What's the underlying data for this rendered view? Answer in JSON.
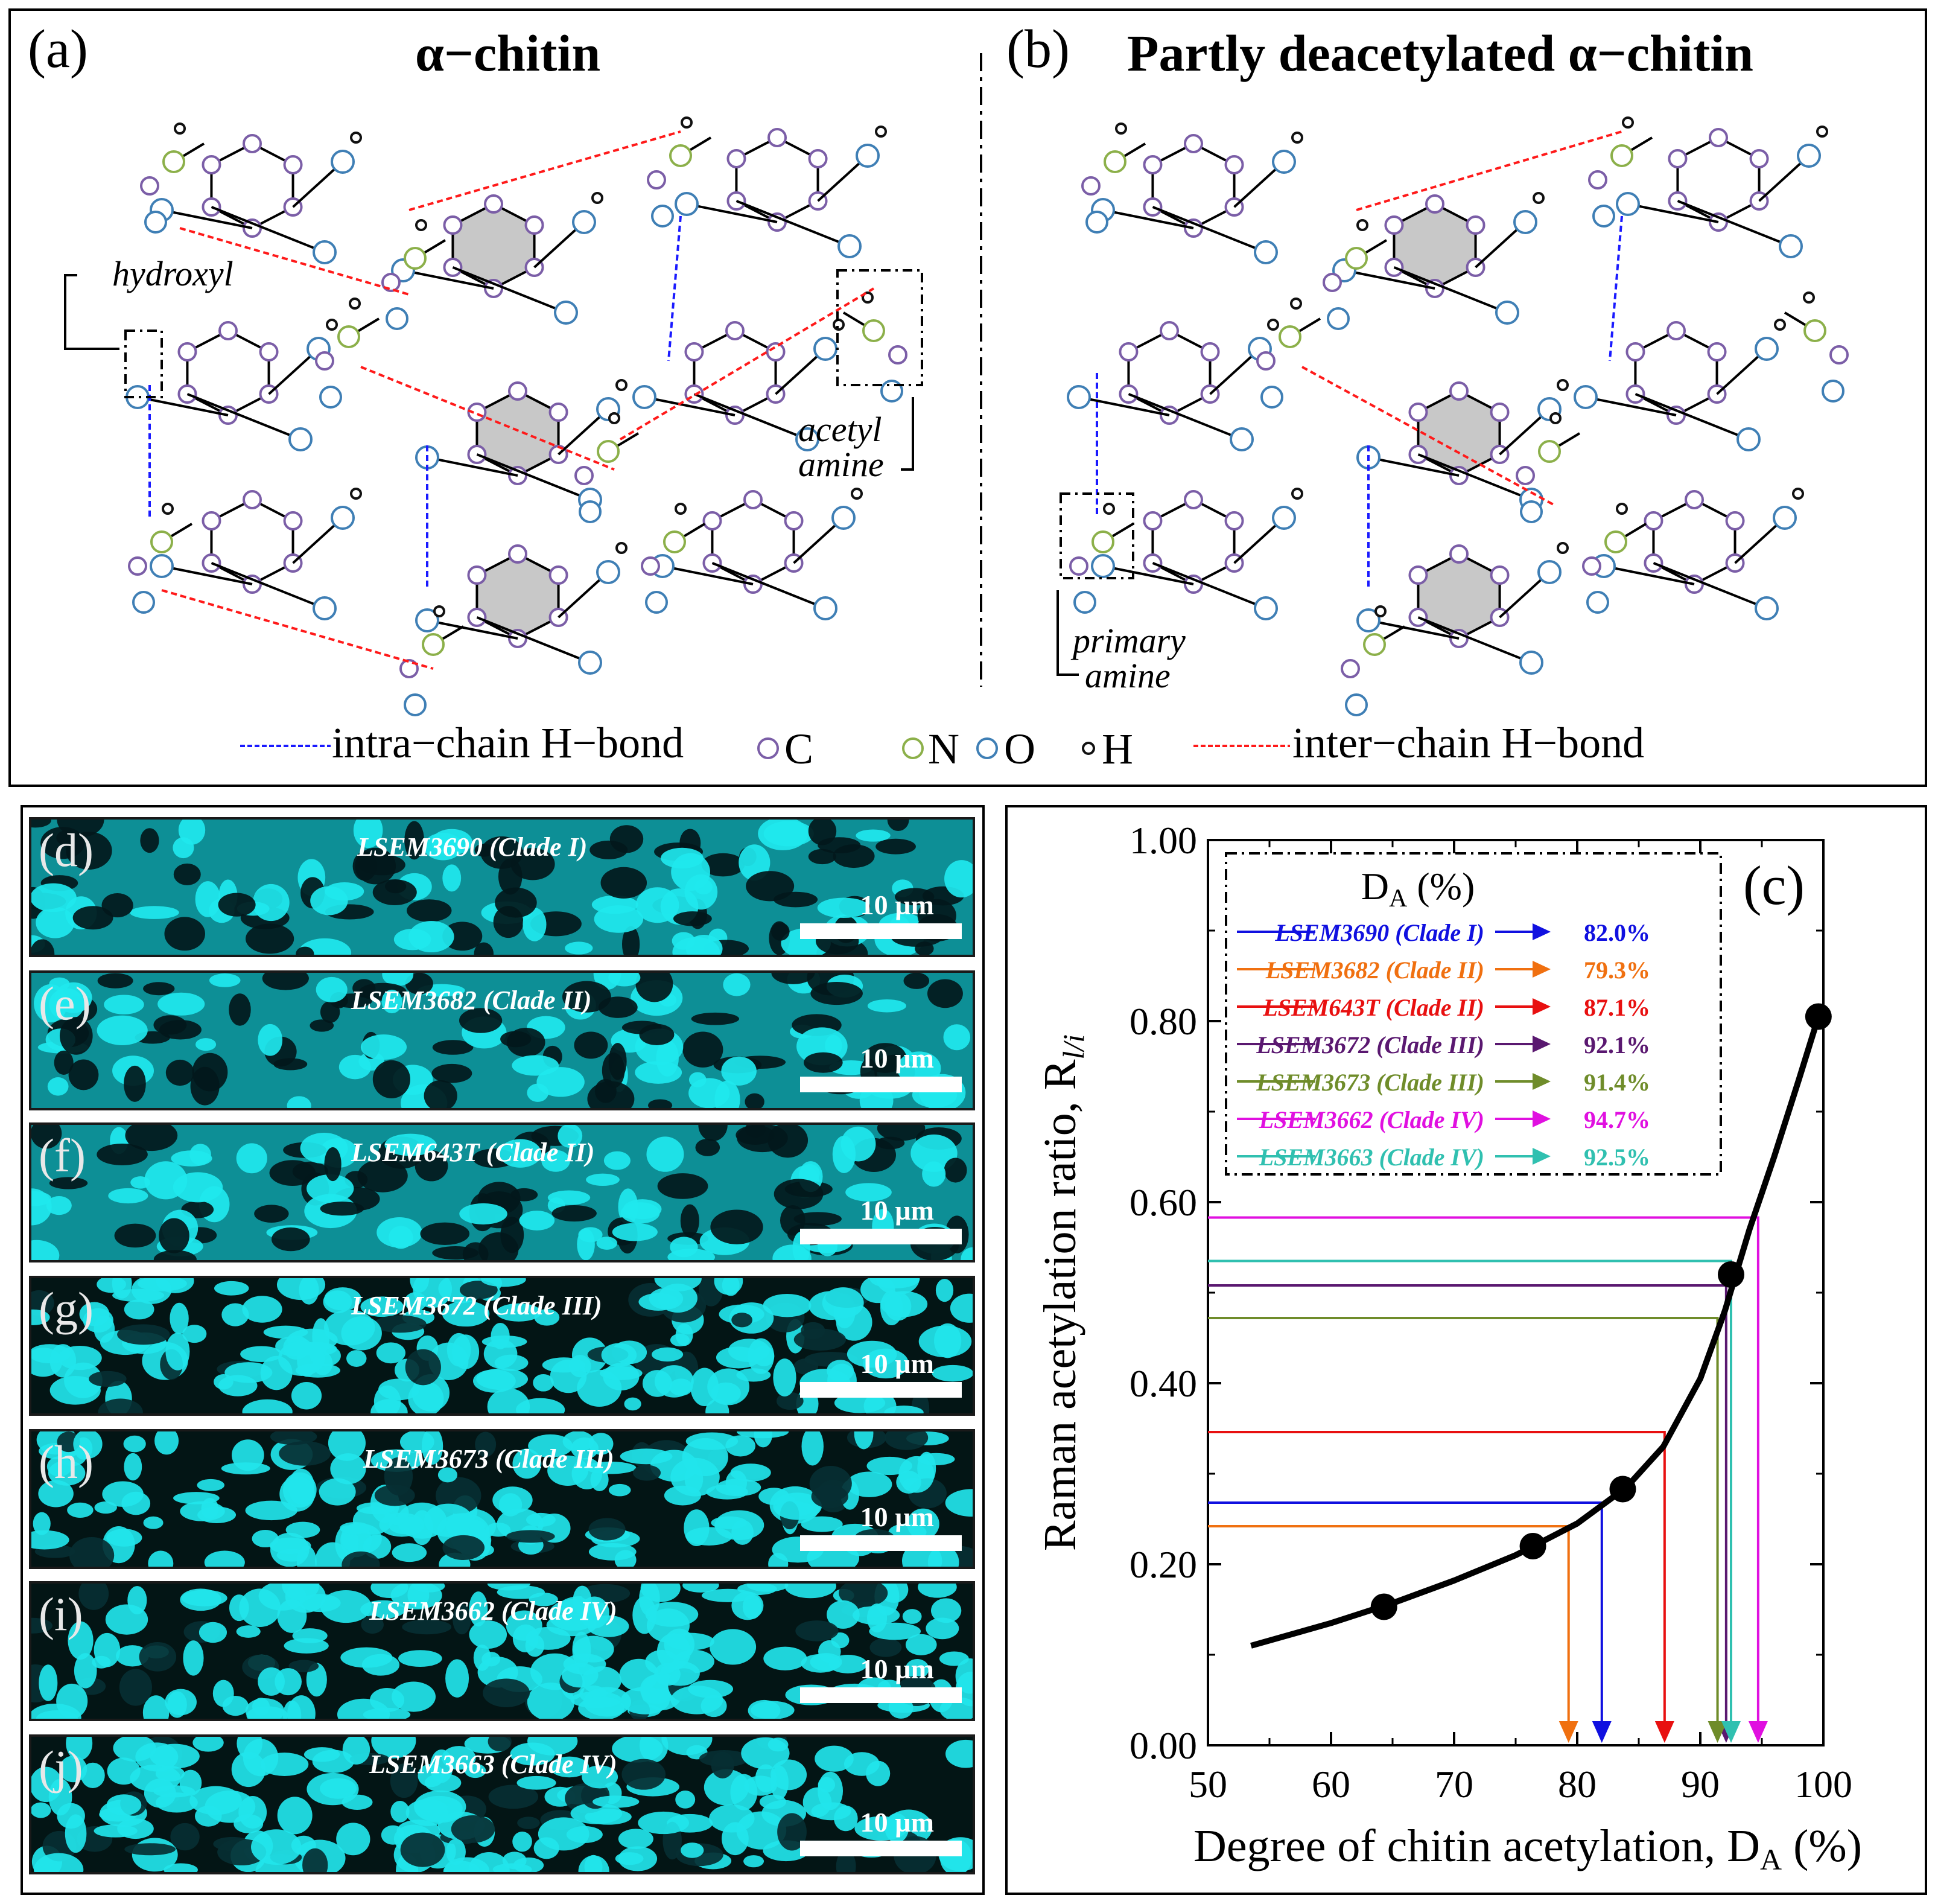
{
  "panel_a": {
    "label": "(a)",
    "title": "α−chitin",
    "annotations": {
      "hydroxyl": "hydroxyl",
      "acetyl_1": "acetyl",
      "acetyl_2": "amine"
    }
  },
  "panel_b": {
    "label": "(b)",
    "title": "Partly deacetylated α−chitin",
    "annotations": {
      "primary_1": "primary",
      "primary_2": "amine"
    }
  },
  "legend_top": {
    "intra": "intra−chain H−bond",
    "inter": "inter−chain H−bond",
    "atoms": [
      {
        "symbol": "C",
        "color": "#7b5ea7"
      },
      {
        "symbol": "N",
        "color": "#8cb04a"
      },
      {
        "symbol": "O",
        "color": "#3f7fb5"
      },
      {
        "symbol": "H",
        "color": "#111111"
      }
    ],
    "intra_color": "#1a1aff",
    "inter_color": "#ff1a1a"
  },
  "strips": [
    {
      "label": "(d)",
      "name": "LSEM3690",
      "clade": "(Clade I)",
      "scale": "10 µm"
    },
    {
      "label": "(e)",
      "name": "LSEM3682",
      "clade": "(Clade II)",
      "scale": "10 µm"
    },
    {
      "label": "(f)",
      "name": "LSEM643T",
      "clade": "(Clade II)",
      "scale": "10 µm"
    },
    {
      "label": "(g)",
      "name": "LSEM3672",
      "clade": "(Clade III)",
      "scale": "10 µm"
    },
    {
      "label": "(h)",
      "name": "LSEM3673",
      "clade": "(Clade III)",
      "scale": "10 µm"
    },
    {
      "label": "(i)",
      "name": "LSEM3662",
      "clade": "(Clade IV)",
      "scale": "10 µm"
    },
    {
      "label": "(j)",
      "name": "LSEM3663",
      "clade": "(Clade IV)",
      "scale": "10 µm"
    }
  ],
  "chart_data": {
    "type": "line",
    "panel_label": "(c)",
    "xlabel": "Degree of chitin acetylation, D",
    "xlabel_sub": "A",
    "xlabel_tail": " (%)",
    "ylabel": "Raman acetylation ratio, R",
    "ylabel_sub": "l/i",
    "xlim": [
      50,
      100
    ],
    "ylim": [
      0,
      1.0
    ],
    "xticks": [
      "50",
      "60",
      "70",
      "80",
      "90",
      "100"
    ],
    "yticks": [
      "0.00",
      "0.20",
      "0.40",
      "0.60",
      "0.80",
      "1.00"
    ],
    "calibration_points": {
      "x": [
        64.3,
        76.4,
        83.7,
        92.5,
        99.6
      ],
      "y": [
        0.153,
        0.22,
        0.283,
        0.52,
        0.805
      ]
    },
    "fit_curve": {
      "x": [
        53.5,
        60,
        65,
        70,
        75,
        80,
        84,
        87,
        90,
        92,
        94,
        96,
        98,
        99.6
      ],
      "y": [
        0.11,
        0.135,
        0.157,
        0.182,
        0.21,
        0.245,
        0.285,
        0.33,
        0.405,
        0.48,
        0.57,
        0.65,
        0.735,
        0.805
      ]
    },
    "legend_title": "D",
    "legend_title_sub": "A",
    "legend_title_tail": " (%)",
    "series": [
      {
        "name": "LSEM3690 (Clade I)",
        "value_label": "82.0%",
        "da": 82.0,
        "ratio": 0.268,
        "color": "#1010e0"
      },
      {
        "name": "LSEM3682 (Clade II)",
        "value_label": "79.3%",
        "da": 79.3,
        "ratio": 0.242,
        "color": "#f07010"
      },
      {
        "name": "LSEM643T (Clade II)",
        "value_label": "87.1%",
        "da": 87.1,
        "ratio": 0.346,
        "color": "#e81010"
      },
      {
        "name": "LSEM3672 (Clade III)",
        "value_label": "92.1%",
        "da": 92.1,
        "ratio": 0.508,
        "color": "#5a1870"
      },
      {
        "name": "LSEM3673 (Clade III)",
        "value_label": "91.4%",
        "da": 91.4,
        "ratio": 0.472,
        "color": "#6f8c2a"
      },
      {
        "name": "LSEM3662 (Clade IV)",
        "value_label": "94.7%",
        "da": 94.7,
        "ratio": 0.583,
        "color": "#e010e0"
      },
      {
        "name": "LSEM3663 (Clade IV)",
        "value_label": "92.5%",
        "da": 92.5,
        "ratio": 0.535,
        "color": "#30c0b0"
      }
    ]
  }
}
